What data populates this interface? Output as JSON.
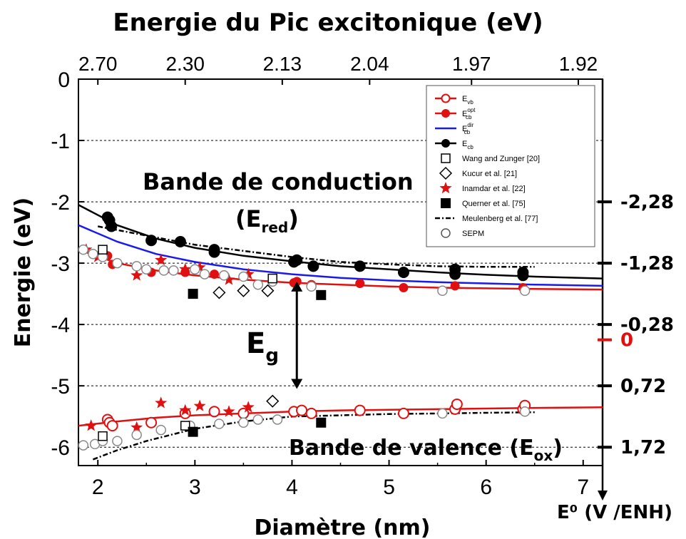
{
  "chart_data": {
    "type": "scatter",
    "title": "Energie du Pic excitonique (eV)",
    "xlabel": "Diamètre (nm)",
    "ylabel": "Energie (eV)",
    "right_axis_label": "E⁰ (V /ENH)",
    "xlim": [
      1.8,
      7.2
    ],
    "ylim": [
      -6.3,
      0
    ],
    "x_ticks": [
      "2",
      "3",
      "4",
      "5",
      "6",
      "7"
    ],
    "y_ticks": [
      "0",
      "-1",
      "-2",
      "-3",
      "-4",
      "-5",
      "-6"
    ],
    "top_ticks": [
      {
        "x": 2.0,
        "label": "2.70"
      },
      {
        "x": 2.9,
        "label": "2.30"
      },
      {
        "x": 3.9,
        "label": "2.13"
      },
      {
        "x": 4.8,
        "label": "2.04"
      },
      {
        "x": 5.85,
        "label": "1.97"
      },
      {
        "x": 6.95,
        "label": "1.92"
      }
    ],
    "right_ticks": [
      {
        "y": -2.0,
        "label": "-2,28",
        "color": "#000000"
      },
      {
        "y": -3.0,
        "label": "-1,28",
        "color": "#000000"
      },
      {
        "y": -4.0,
        "label": "-0,28",
        "color": "#000000"
      },
      {
        "y": -4.25,
        "label": "0",
        "color": "#e01010"
      },
      {
        "y": -5.0,
        "label": "0,72",
        "color": "#000000"
      },
      {
        "y": -6.0,
        "label": "1,72",
        "color": "#000000"
      }
    ],
    "dashed_levels": [
      -1,
      -2,
      -3,
      -4,
      -5,
      -6
    ],
    "annotations": {
      "conduction": "Bande de conduction",
      "red_prefix": "(E",
      "red_sub": "red",
      "red_suffix": ")",
      "eg": "E",
      "eg_sub": "g",
      "valence_prefix": "Bande de valence (E",
      "valence_sub": "ox",
      "valence_suffix": ")"
    },
    "legend": [
      {
        "label": "E",
        "sub": "vb",
        "sup": "",
        "kind": "line-open",
        "color": "#e01010"
      },
      {
        "label": "E",
        "sub": "cb",
        "sup": "opt",
        "kind": "line-filled",
        "color": "#e01010"
      },
      {
        "label": "E",
        "sub": "cb",
        "sup": "dir",
        "kind": "line",
        "color": "#1a1aee"
      },
      {
        "label": "E",
        "sub": "cb",
        "sup": "",
        "kind": "line-filled",
        "color": "#000000"
      },
      {
        "label": "Wang and Zunger [20]",
        "sub": "",
        "sup": "",
        "kind": "square-open",
        "color": "#000000"
      },
      {
        "label": "Kucur et al. [21]",
        "sub": "",
        "sup": "",
        "kind": "diamond-open",
        "color": "#000000"
      },
      {
        "label": "Inamdar et al. [22]",
        "sub": "",
        "sup": "",
        "kind": "star",
        "color": "#e01010"
      },
      {
        "label": "Querner et al. [75]",
        "sub": "",
        "sup": "",
        "kind": "square-filled",
        "color": "#000000"
      },
      {
        "label": "Meulenberg et al. [77]",
        "sub": "",
        "sup": "",
        "kind": "dashdot",
        "color": "#000000"
      },
      {
        "label": "SEPM",
        "sub": "",
        "sup": "",
        "kind": "circle-open-gray",
        "color": "#888888"
      }
    ],
    "series": [
      {
        "name": "E_cb",
        "kind": "black-filled",
        "color": "#000000",
        "points": [
          [
            2.1,
            -2.25
          ],
          [
            2.12,
            -2.3
          ],
          [
            2.14,
            -2.4
          ],
          [
            2.55,
            -2.63
          ],
          [
            2.85,
            -2.65
          ],
          [
            3.2,
            -2.78
          ],
          [
            3.2,
            -2.82
          ],
          [
            4.02,
            -2.98
          ],
          [
            4.05,
            -2.95
          ],
          [
            4.22,
            -3.05
          ],
          [
            4.7,
            -3.05
          ],
          [
            5.15,
            -3.15
          ],
          [
            5.68,
            -3.1
          ],
          [
            5.68,
            -3.18
          ],
          [
            6.38,
            -3.15
          ],
          [
            6.38,
            -3.2
          ]
        ]
      },
      {
        "name": "E_cb opt",
        "kind": "red-filled",
        "color": "#e01010",
        "points": [
          [
            2.1,
            -2.88
          ],
          [
            2.15,
            -3.02
          ],
          [
            2.55,
            -3.15
          ],
          [
            2.9,
            -3.15
          ],
          [
            3.2,
            -3.18
          ],
          [
            4.02,
            -3.32
          ],
          [
            4.05,
            -3.3
          ],
          [
            4.2,
            -3.35
          ],
          [
            4.7,
            -3.33
          ],
          [
            5.15,
            -3.4
          ],
          [
            5.68,
            -3.37
          ],
          [
            6.38,
            -3.4
          ]
        ]
      },
      {
        "name": "E_vb",
        "kind": "red-open",
        "color": "#e01010",
        "points": [
          [
            2.1,
            -5.55
          ],
          [
            2.12,
            -5.6
          ],
          [
            2.15,
            -5.65
          ],
          [
            2.55,
            -5.6
          ],
          [
            2.9,
            -5.45
          ],
          [
            3.2,
            -5.42
          ],
          [
            3.5,
            -5.45
          ],
          [
            4.02,
            -5.42
          ],
          [
            4.1,
            -5.4
          ],
          [
            4.2,
            -5.45
          ],
          [
            4.7,
            -5.4
          ],
          [
            5.15,
            -5.45
          ],
          [
            5.68,
            -5.38
          ],
          [
            5.7,
            -5.3
          ],
          [
            6.38,
            -5.38
          ],
          [
            6.4,
            -5.32
          ]
        ]
      },
      {
        "name": "Inamdar",
        "kind": "star",
        "color": "#e01010",
        "points": [
          [
            1.88,
            -2.78
          ],
          [
            2.0,
            -2.9
          ],
          [
            2.4,
            -3.2
          ],
          [
            2.65,
            -2.95
          ],
          [
            2.9,
            -3.1
          ],
          [
            3.05,
            -3.07
          ],
          [
            3.35,
            -3.27
          ],
          [
            3.55,
            -3.18
          ],
          [
            1.93,
            -5.65
          ],
          [
            2.4,
            -5.68
          ],
          [
            2.65,
            -5.28
          ],
          [
            2.9,
            -5.4
          ],
          [
            3.05,
            -5.33
          ],
          [
            3.35,
            -5.42
          ],
          [
            3.55,
            -5.35
          ]
        ]
      },
      {
        "name": "SEPM",
        "kind": "gray-open",
        "color": "#888888",
        "points": [
          [
            1.85,
            -2.78
          ],
          [
            1.95,
            -2.85
          ],
          [
            2.05,
            -2.9
          ],
          [
            2.2,
            -3.0
          ],
          [
            2.4,
            -3.05
          ],
          [
            2.5,
            -3.1
          ],
          [
            2.68,
            -3.12
          ],
          [
            2.78,
            -3.12
          ],
          [
            3.0,
            -3.1
          ],
          [
            3.1,
            -3.18
          ],
          [
            3.3,
            -3.2
          ],
          [
            3.5,
            -3.22
          ],
          [
            3.65,
            -3.35
          ],
          [
            3.8,
            -3.3
          ],
          [
            4.2,
            -3.38
          ],
          [
            5.55,
            -3.45
          ],
          [
            6.4,
            -3.45
          ],
          [
            1.85,
            -5.97
          ],
          [
            1.97,
            -5.95
          ],
          [
            2.05,
            -5.9
          ],
          [
            2.2,
            -5.9
          ],
          [
            2.4,
            -5.8
          ],
          [
            2.65,
            -5.72
          ],
          [
            2.95,
            -5.65
          ],
          [
            3.25,
            -5.62
          ],
          [
            3.5,
            -5.6
          ],
          [
            3.65,
            -5.55
          ],
          [
            3.85,
            -5.55
          ],
          [
            5.55,
            -5.45
          ],
          [
            6.4,
            -5.42
          ]
        ]
      },
      {
        "name": "Wang and Zunger",
        "kind": "square-open",
        "color": "#000000",
        "points": [
          [
            2.05,
            -2.78
          ],
          [
            3.8,
            -3.25
          ],
          [
            2.05,
            -5.82
          ],
          [
            2.9,
            -5.65
          ]
        ]
      },
      {
        "name": "Kucur",
        "kind": "diamond-open",
        "color": "#000000",
        "points": [
          [
            3.25,
            -3.48
          ],
          [
            3.5,
            -3.45
          ],
          [
            3.75,
            -3.45
          ],
          [
            3.8,
            -5.25
          ]
        ]
      },
      {
        "name": "Querner",
        "kind": "square-filled",
        "color": "#000000",
        "points": [
          [
            2.98,
            -3.5
          ],
          [
            4.3,
            -3.52
          ],
          [
            2.98,
            -5.75
          ],
          [
            4.3,
            -5.6
          ]
        ]
      }
    ],
    "curves": [
      {
        "name": "E_cb fit",
        "color": "#000000",
        "dash": "",
        "points": [
          [
            1.8,
            -2.05
          ],
          [
            2.2,
            -2.38
          ],
          [
            2.6,
            -2.6
          ],
          [
            3.0,
            -2.75
          ],
          [
            3.5,
            -2.88
          ],
          [
            4.0,
            -2.97
          ],
          [
            4.5,
            -3.05
          ],
          [
            5.0,
            -3.1
          ],
          [
            5.5,
            -3.15
          ],
          [
            6.0,
            -3.19
          ],
          [
            6.5,
            -3.22
          ],
          [
            7.2,
            -3.25
          ]
        ]
      },
      {
        "name": "E_cb dir",
        "color": "#1a1aee",
        "dash": "",
        "points": [
          [
            1.8,
            -2.38
          ],
          [
            2.2,
            -2.65
          ],
          [
            2.6,
            -2.85
          ],
          [
            3.0,
            -2.98
          ],
          [
            3.5,
            -3.1
          ],
          [
            4.0,
            -3.18
          ],
          [
            4.5,
            -3.24
          ],
          [
            5.0,
            -3.28
          ],
          [
            5.5,
            -3.31
          ],
          [
            6.0,
            -3.33
          ],
          [
            6.5,
            -3.35
          ],
          [
            7.2,
            -3.37
          ]
        ]
      },
      {
        "name": "E_cb opt fit",
        "color": "#e01010",
        "dash": "",
        "points": [
          [
            1.8,
            -2.78
          ],
          [
            2.2,
            -3.0
          ],
          [
            2.6,
            -3.12
          ],
          [
            3.0,
            -3.2
          ],
          [
            3.5,
            -3.27
          ],
          [
            4.0,
            -3.32
          ],
          [
            4.5,
            -3.35
          ],
          [
            5.0,
            -3.38
          ],
          [
            5.5,
            -3.4
          ],
          [
            6.0,
            -3.41
          ],
          [
            6.5,
            -3.42
          ],
          [
            7.2,
            -3.43
          ]
        ]
      },
      {
        "name": "E_vb fit",
        "color": "#e01010",
        "dash": "",
        "points": [
          [
            1.8,
            -5.65
          ],
          [
            2.2,
            -5.58
          ],
          [
            2.6,
            -5.52
          ],
          [
            3.0,
            -5.48
          ],
          [
            3.5,
            -5.45
          ],
          [
            4.0,
            -5.42
          ],
          [
            4.5,
            -5.4
          ],
          [
            5.0,
            -5.39
          ],
          [
            5.5,
            -5.38
          ],
          [
            6.0,
            -5.37
          ],
          [
            6.5,
            -5.36
          ],
          [
            7.2,
            -5.35
          ]
        ]
      },
      {
        "name": "Meulenberg CB",
        "color": "#000000",
        "dash": "7 3 2 3",
        "points": [
          [
            2.0,
            -2.4
          ],
          [
            2.5,
            -2.55
          ],
          [
            3.0,
            -2.7
          ],
          [
            3.5,
            -2.8
          ],
          [
            4.0,
            -2.9
          ],
          [
            4.5,
            -2.98
          ],
          [
            5.0,
            -3.02
          ],
          [
            5.5,
            -3.05
          ],
          [
            6.0,
            -3.06
          ],
          [
            6.5,
            -3.06
          ]
        ]
      },
      {
        "name": "Meulenberg VB",
        "color": "#000000",
        "dash": "7 3 2 3",
        "points": [
          [
            1.95,
            -6.2
          ],
          [
            2.2,
            -6.05
          ],
          [
            2.5,
            -5.9
          ],
          [
            3.0,
            -5.7
          ],
          [
            3.5,
            -5.58
          ],
          [
            4.0,
            -5.5
          ],
          [
            4.5,
            -5.48
          ],
          [
            5.0,
            -5.46
          ],
          [
            5.5,
            -5.45
          ],
          [
            6.0,
            -5.44
          ],
          [
            6.5,
            -5.43
          ]
        ]
      }
    ],
    "eg_arrow": {
      "x": 4.05,
      "y_top": -3.3,
      "y_bottom": -5.05
    }
  }
}
